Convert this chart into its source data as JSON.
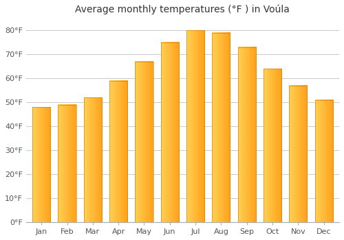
{
  "title": "Average monthly temperatures (°F ) in Voúla",
  "months": [
    "Jan",
    "Feb",
    "Mar",
    "Apr",
    "May",
    "Jun",
    "Jul",
    "Aug",
    "Sep",
    "Oct",
    "Nov",
    "Dec"
  ],
  "temperatures": [
    48,
    49,
    52,
    59,
    67,
    75,
    80,
    79,
    73,
    64,
    57,
    51
  ],
  "bar_color_left": "#FFCC55",
  "bar_color_right": "#FFA020",
  "background_color": "#ffffff",
  "grid_color": "#cccccc",
  "ylabel_ticks": [
    0,
    10,
    20,
    30,
    40,
    50,
    60,
    70,
    80
  ],
  "ylim": [
    0,
    85
  ],
  "title_fontsize": 10,
  "tick_fontsize": 8,
  "bar_width": 0.7
}
